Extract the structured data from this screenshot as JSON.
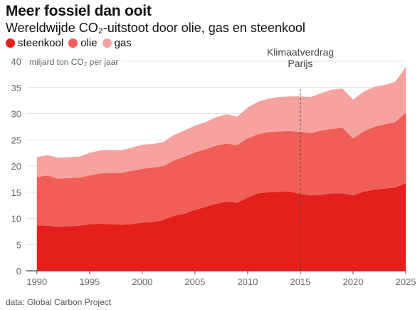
{
  "header": {
    "title": "Meer fossiel dan ooit",
    "subtitle": "Wereldwijde CO₂-uitstoot door olie, gas en steenkool"
  },
  "source": "data: Global Carbon Project",
  "chart_data": {
    "type": "area",
    "stacked": true,
    "ylabel": "miljard ton CO₂ per jaar",
    "ylim": [
      0,
      40
    ],
    "xlim": [
      1989,
      2025
    ],
    "yticks": [
      0,
      5,
      10,
      15,
      20,
      25,
      30,
      35,
      40
    ],
    "xticks": [
      1990,
      1995,
      2000,
      2005,
      2010,
      2015,
      2020,
      2025
    ],
    "grid": true,
    "legend_position": "top-left",
    "annotation": {
      "x": 2015,
      "line1": "Klimaatverdrag",
      "line2": "Parijs"
    },
    "x": [
      1990,
      1991,
      1992,
      1993,
      1994,
      1995,
      1996,
      1997,
      1998,
      1999,
      2000,
      2001,
      2002,
      2003,
      2004,
      2005,
      2006,
      2007,
      2008,
      2009,
      2010,
      2011,
      2012,
      2013,
      2014,
      2015,
      2016,
      2017,
      2018,
      2019,
      2020,
      2021,
      2022,
      2023,
      2024,
      2025
    ],
    "series": [
      {
        "name": "steenkool",
        "color": "#e3201b",
        "values": [
          8.7,
          8.6,
          8.4,
          8.5,
          8.6,
          8.9,
          9.0,
          8.9,
          8.8,
          8.9,
          9.2,
          9.3,
          9.7,
          10.5,
          10.9,
          11.6,
          12.2,
          12.8,
          13.2,
          13.0,
          14.0,
          14.8,
          15.0,
          15.1,
          15.1,
          14.7,
          14.4,
          14.5,
          14.8,
          14.8,
          14.4,
          15.1,
          15.5,
          15.7,
          15.9,
          16.7
        ]
      },
      {
        "name": "olie",
        "color": "#f15e58",
        "values": [
          9.2,
          9.6,
          9.2,
          9.2,
          9.2,
          9.3,
          9.6,
          9.8,
          9.9,
          10.2,
          10.3,
          10.4,
          10.3,
          10.6,
          10.9,
          11.0,
          11.0,
          11.1,
          11.1,
          11.0,
          11.3,
          11.3,
          11.5,
          11.5,
          11.6,
          11.8,
          11.9,
          12.3,
          12.3,
          12.5,
          10.9,
          11.5,
          12.0,
          12.3,
          12.5,
          13.5
        ]
      },
      {
        "name": "gas",
        "color": "#f6a3a0",
        "values": [
          3.8,
          3.9,
          4.0,
          4.0,
          4.0,
          4.3,
          4.4,
          4.4,
          4.3,
          4.4,
          4.6,
          4.5,
          4.6,
          4.8,
          5.0,
          5.1,
          5.2,
          5.4,
          5.6,
          5.4,
          5.9,
          6.2,
          6.4,
          6.6,
          6.6,
          6.8,
          6.9,
          7.1,
          7.5,
          7.5,
          7.4,
          7.6,
          7.6,
          7.5,
          7.7,
          8.7
        ]
      }
    ]
  }
}
